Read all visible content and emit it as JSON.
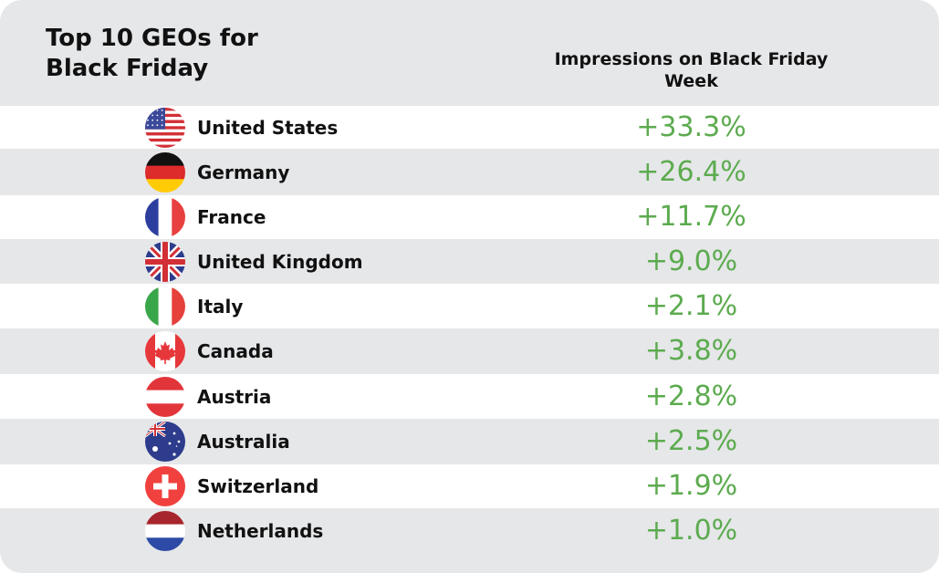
{
  "header": {
    "title": "Top 10 GEOs for Black Friday",
    "column_label": "Impressions on Black Friday Week"
  },
  "chart_data": {
    "type": "table",
    "title": "Top 10 GEOs for Black Friday",
    "columns": [
      "",
      "Impressions on Black Friday Week"
    ],
    "categories": [
      "United States",
      "Germany",
      "France",
      "United Kingdom",
      "Italy",
      "Canada",
      "Austria",
      "Australia",
      "Switzerland",
      "Netherlands"
    ],
    "values": [
      33.3,
      26.4,
      11.7,
      9.0,
      2.1,
      3.8,
      2.8,
      2.5,
      1.9,
      1.0
    ],
    "rows": [
      {
        "country": "United States",
        "value": "+33.3%",
        "flag": "us-flag-icon"
      },
      {
        "country": "Germany",
        "value": "+26.4%",
        "flag": "germany-flag-icon"
      },
      {
        "country": "France",
        "value": "+11.7%",
        "flag": "france-flag-icon"
      },
      {
        "country": "United Kingdom",
        "value": "+9.0%",
        "flag": "uk-flag-icon"
      },
      {
        "country": "Italy",
        "value": "+2.1%",
        "flag": "italy-flag-icon"
      },
      {
        "country": "Canada",
        "value": "+3.8%",
        "flag": "canada-flag-icon"
      },
      {
        "country": "Austria",
        "value": "+2.8%",
        "flag": "austria-flag-icon"
      },
      {
        "country": "Australia",
        "value": "+2.5%",
        "flag": "australia-flag-icon"
      },
      {
        "country": "Switzerland",
        "value": "+1.9%",
        "flag": "switzerland-flag-icon"
      },
      {
        "country": "Netherlands",
        "value": "+1.0%",
        "flag": "netherlands-flag-icon"
      }
    ]
  },
  "colors": {
    "background": "#e6e7e9",
    "row_alt": "#ffffff",
    "value_text": "#5cab4f",
    "label_text": "#111111"
  }
}
